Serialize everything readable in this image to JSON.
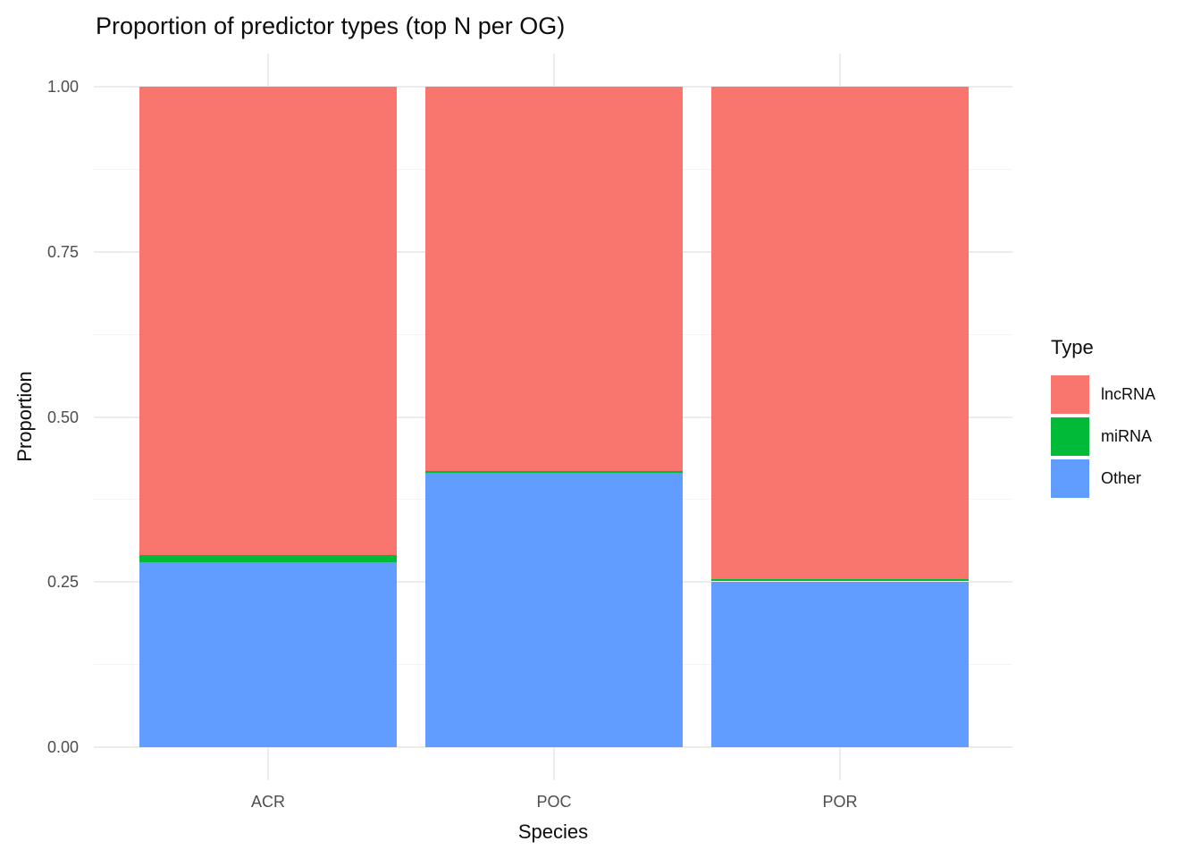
{
  "chart_data": {
    "type": "bar",
    "stacked": true,
    "title": "Proportion of predictor types (top N per OG)",
    "xlabel": "Species",
    "ylabel": "Proportion",
    "categories": [
      "ACR",
      "POC",
      "POR"
    ],
    "series": [
      {
        "name": "lncRNA",
        "color": "#F8766D",
        "values": [
          0.709,
          0.582,
          0.746
        ]
      },
      {
        "name": "miRNA",
        "color": "#00BA38",
        "values": [
          0.011,
          0.003,
          0.003
        ]
      },
      {
        "name": "Other",
        "color": "#619CFF",
        "values": [
          0.28,
          0.415,
          0.251
        ]
      }
    ],
    "stack_order_bottom_to_top": [
      "Other",
      "miRNA",
      "lncRNA"
    ],
    "ylim": [
      0,
      1
    ],
    "yticks": [
      {
        "value": 0.0,
        "label": "0.00"
      },
      {
        "value": 0.25,
        "label": "0.25"
      },
      {
        "value": 0.5,
        "label": "0.50"
      },
      {
        "value": 0.75,
        "label": "0.75"
      },
      {
        "value": 1.0,
        "label": "1.00"
      }
    ],
    "y_minor_ticks": [
      0.125,
      0.375,
      0.625,
      0.875
    ],
    "grid": true,
    "legend": {
      "title": "Type",
      "position": "right",
      "entries": [
        "lncRNA",
        "miRNA",
        "Other"
      ]
    },
    "colors": {
      "background": "#FFFFFF",
      "grid_major": "#ECECEC",
      "grid_minor": "#F4F4F4",
      "tick_label": "#4D4D4D",
      "text": "#0D0D0D"
    }
  }
}
